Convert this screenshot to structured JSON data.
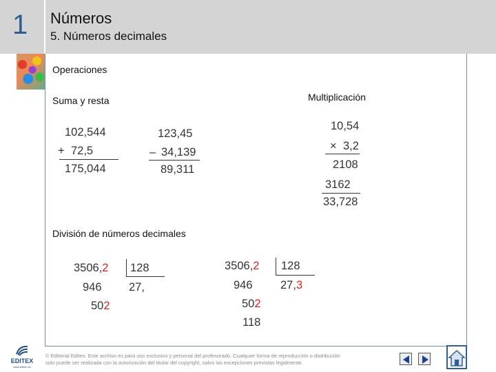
{
  "header": {
    "chapter_number": "1",
    "title": "Números",
    "subtitle": "5. Números decimales"
  },
  "content": {
    "heading": "Operaciones",
    "sum_heading": "Suma y resta",
    "mult_heading": "Multiplicación",
    "div_heading": "División de números decimales",
    "sum": {
      "line1": "102,544",
      "op": "+",
      "line2": "72,5",
      "result": "175,044"
    },
    "sub": {
      "line1": "123,45",
      "op": "–",
      "line2": "34,139",
      "result": "89,311"
    },
    "mult": {
      "line1": "10,54",
      "op": "×",
      "line2": "3,2",
      "partial1": "2108",
      "partial2": "3162",
      "result": "33,728"
    },
    "div1": {
      "dividend_main": "3506,",
      "dividend_red": "2",
      "divisor": "128",
      "remainder1": "946",
      "quotient_main": "27,",
      "remainder2_main": "50",
      "remainder2_red": "2"
    },
    "div2": {
      "dividend_main": "3506,",
      "dividend_red": "2",
      "divisor": "128",
      "remainder1": "946",
      "quotient_main": "27,",
      "quotient_red": "3",
      "remainder2_main": "50",
      "remainder2_red": "2",
      "remainder3": "118"
    }
  },
  "footer": {
    "copyright_line1": "© Editorial Editex. Este archivo es para uso exclusivo y personal del profesorado. Cualquier forma de reproducción o distribución",
    "copyright_line2": "solo puede ser realizada con la autorización del titular del copyright, salvo las excepciones previstas legalmente.",
    "logo_text": "EDITEX",
    "logo_subtext": "www.editex.es"
  },
  "icons": {
    "prev": "prev-arrow-icon",
    "next": "next-arrow-icon",
    "home": "home-icon"
  },
  "colors": {
    "accent": "#2f5f8f",
    "highlight": "#e0241c",
    "header_bg": "#d4d4d4"
  }
}
